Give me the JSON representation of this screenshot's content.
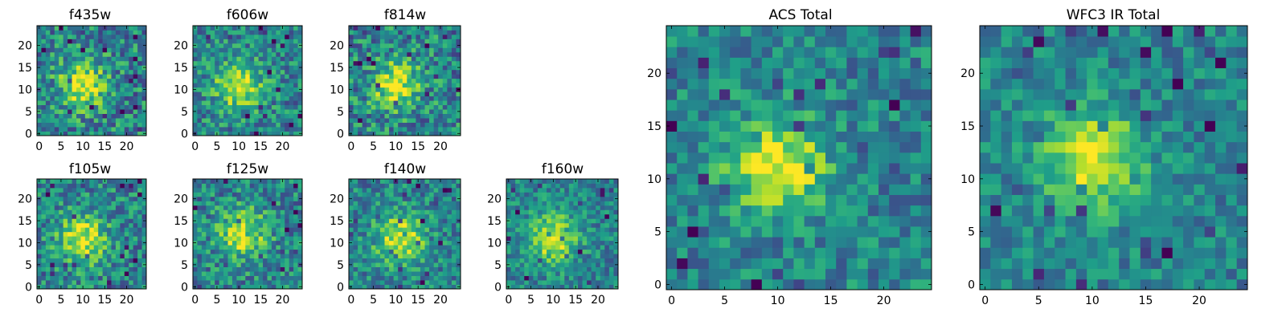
{
  "chart_data": {
    "type": "heatmap",
    "colormap": "viridis",
    "panels": [
      {
        "title": "f435w",
        "size": 25,
        "center": [
          10,
          11
        ],
        "center_level": 0.88,
        "noise": 0.55,
        "x_ticks": [
          "0",
          "5",
          "10",
          "15",
          "20"
        ],
        "y_ticks": [
          "0",
          "5",
          "10",
          "15",
          "20"
        ]
      },
      {
        "title": "f606w",
        "size": 25,
        "center": [
          10,
          11
        ],
        "center_level": 0.95,
        "noise": 0.5,
        "x_ticks": [
          "0",
          "5",
          "10",
          "15",
          "20"
        ],
        "y_ticks": [
          "0",
          "5",
          "10",
          "15",
          "20"
        ]
      },
      {
        "title": "f814w",
        "size": 25,
        "center": [
          10,
          11
        ],
        "center_level": 0.9,
        "noise": 0.55,
        "x_ticks": [
          "0",
          "5",
          "10",
          "15",
          "20"
        ],
        "y_ticks": [
          "0",
          "5",
          "10",
          "15",
          "20"
        ]
      },
      {
        "title": "f105w",
        "size": 25,
        "center": [
          10,
          11
        ],
        "center_level": 0.95,
        "noise": 0.5,
        "x_ticks": [
          "0",
          "5",
          "10",
          "15",
          "20"
        ],
        "y_ticks": [
          "0",
          "5",
          "10",
          "15",
          "20"
        ]
      },
      {
        "title": "f125w",
        "size": 25,
        "center": [
          11,
          12
        ],
        "center_level": 0.9,
        "noise": 0.5,
        "x_ticks": [
          "0",
          "5",
          "10",
          "15",
          "20"
        ],
        "y_ticks": [
          "0",
          "5",
          "10",
          "15",
          "20"
        ]
      },
      {
        "title": "f140w",
        "size": 25,
        "center": [
          11,
          11
        ],
        "center_level": 0.92,
        "noise": 0.45,
        "x_ticks": [
          "0",
          "5",
          "10",
          "15",
          "20"
        ],
        "y_ticks": [
          "0",
          "5",
          "10",
          "15",
          "20"
        ]
      },
      {
        "title": "f160w",
        "size": 25,
        "center": [
          10,
          11
        ],
        "center_level": 0.95,
        "noise": 0.4,
        "x_ticks": [
          "0",
          "5",
          "10",
          "15",
          "20"
        ],
        "y_ticks": [
          "0",
          "5",
          "10",
          "15",
          "20"
        ]
      },
      {
        "title": "ACS Total",
        "size": 25,
        "center": [
          10,
          11
        ],
        "center_level": 1.0,
        "noise": 0.4,
        "x_ticks": [
          "0",
          "5",
          "10",
          "15",
          "20"
        ],
        "y_ticks": [
          "0",
          "5",
          "10",
          "15",
          "20"
        ]
      },
      {
        "title": "WFC3 IR Total",
        "size": 25,
        "center": [
          10,
          12
        ],
        "center_level": 1.0,
        "noise": 0.35,
        "x_ticks": [
          "0",
          "5",
          "10",
          "15",
          "20"
        ],
        "y_ticks": [
          "0",
          "5",
          "10",
          "15",
          "20"
        ]
      }
    ]
  }
}
